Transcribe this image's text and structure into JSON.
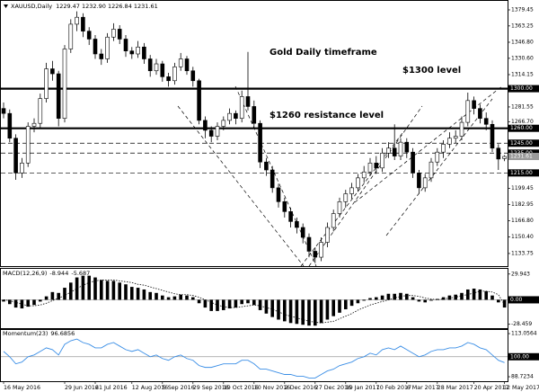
{
  "chart_data": [
    {
      "type": "candlestick",
      "title": "XAUUSD,Daily",
      "header_values": "1229.47 1232.90 1226.84 1231.61",
      "annotations": [
        "Gold Daily timeframe",
        "$1300 level",
        "$1260 resistance level"
      ],
      "categories": [
        "16 May 2016",
        null,
        null,
        null,
        null,
        null,
        null,
        null,
        null,
        null,
        "29 Jun 2016",
        null,
        null,
        null,
        null,
        "21 Jul 2016",
        null,
        null,
        null,
        null,
        null,
        "12 Aug 2016",
        null,
        null,
        null,
        null,
        "5 Sep 2016",
        null,
        null,
        null,
        null,
        "29 Sep 2016",
        null,
        null,
        null,
        null,
        "19 Oct 2016",
        null,
        null,
        null,
        null,
        "10 Nov 2016",
        null,
        null,
        null,
        null,
        "2 Dec 2016",
        null,
        null,
        null,
        null,
        "27 Dec 2016",
        null,
        null,
        null,
        null,
        "19 Jan 2017",
        null,
        null,
        null,
        null,
        "10 Feb 2017",
        null,
        null,
        null,
        null,
        "6 Mar 2017",
        null,
        null,
        null,
        null,
        "28 Mar 2017",
        null,
        null,
        null,
        null,
        null,
        "20 Apr 2017",
        null,
        null,
        null,
        null,
        "12 May 2017"
      ],
      "open": [
        1280,
        1275,
        1250,
        1215,
        1225,
        1262,
        1265,
        1290,
        1320,
        1315,
        1270,
        1340,
        1365,
        1372,
        1358,
        1350,
        1335,
        1330,
        1352,
        1360,
        1350,
        1338,
        1335,
        1342,
        1330,
        1318,
        1325,
        1312,
        1308,
        1322,
        1330,
        1318,
        1308,
        1268,
        1258,
        1252,
        1262,
        1268,
        1275,
        1270,
        1292,
        1282,
        1265,
        1226,
        1218,
        1200,
        1186,
        1176,
        1166,
        1160,
        1150,
        1136,
        1130,
        1145,
        1160,
        1174,
        1186,
        1194,
        1200,
        1210,
        1216,
        1225,
        1220,
        1235,
        1240,
        1232,
        1246,
        1236,
        1215,
        1200,
        1210,
        1226,
        1236,
        1244,
        1250,
        1252,
        1266,
        1288,
        1280,
        1270,
        1264,
        1240,
        1229.47
      ],
      "high": [
        1286,
        1279,
        1254,
        1230,
        1266,
        1270,
        1295,
        1326,
        1328,
        1318,
        1344,
        1370,
        1378,
        1376,
        1362,
        1354,
        1340,
        1356,
        1366,
        1364,
        1354,
        1342,
        1348,
        1346,
        1334,
        1330,
        1328,
        1316,
        1326,
        1336,
        1333,
        1322,
        1310,
        1272,
        1262,
        1266,
        1272,
        1280,
        1278,
        1298,
        1337,
        1288,
        1268,
        1230,
        1222,
        1204,
        1190,
        1180,
        1170,
        1164,
        1154,
        1140,
        1150,
        1165,
        1178,
        1190,
        1198,
        1205,
        1214,
        1222,
        1230,
        1232,
        1240,
        1246,
        1264,
        1250,
        1250,
        1240,
        1218,
        1214,
        1230,
        1240,
        1248,
        1256,
        1258,
        1272,
        1296,
        1292,
        1284,
        1276,
        1268,
        1244,
        1232.9
      ],
      "low": [
        1270,
        1246,
        1208,
        1210,
        1221,
        1256,
        1260,
        1286,
        1308,
        1262,
        1266,
        1336,
        1358,
        1352,
        1344,
        1330,
        1324,
        1326,
        1348,
        1345,
        1332,
        1330,
        1331,
        1325,
        1312,
        1314,
        1307,
        1302,
        1304,
        1318,
        1314,
        1302,
        1264,
        1250,
        1246,
        1248,
        1258,
        1264,
        1264,
        1266,
        1278,
        1260,
        1220,
        1212,
        1195,
        1180,
        1170,
        1160,
        1154,
        1144,
        1130,
        1124,
        1126,
        1140,
        1156,
        1170,
        1180,
        1189,
        1196,
        1205,
        1212,
        1214,
        1216,
        1230,
        1228,
        1228,
        1230,
        1210,
        1194,
        1196,
        1206,
        1222,
        1230,
        1240,
        1245,
        1248,
        1262,
        1274,
        1265,
        1258,
        1236,
        1218,
        1226.84
      ],
      "close": [
        1275,
        1250,
        1215,
        1225,
        1262,
        1265,
        1290,
        1320,
        1315,
        1270,
        1340,
        1365,
        1372,
        1358,
        1350,
        1335,
        1330,
        1352,
        1360,
        1350,
        1338,
        1335,
        1342,
        1330,
        1318,
        1325,
        1312,
        1308,
        1322,
        1330,
        1318,
        1308,
        1268,
        1258,
        1252,
        1262,
        1268,
        1275,
        1270,
        1292,
        1282,
        1265,
        1226,
        1218,
        1200,
        1186,
        1176,
        1166,
        1160,
        1150,
        1136,
        1130,
        1145,
        1160,
        1174,
        1186,
        1194,
        1200,
        1210,
        1216,
        1225,
        1220,
        1235,
        1240,
        1232,
        1246,
        1236,
        1215,
        1200,
        1210,
        1226,
        1236,
        1244,
        1250,
        1252,
        1266,
        1288,
        1280,
        1270,
        1264,
        1240,
        1229,
        1231.61
      ],
      "color": "#000000",
      "ylim": [
        1121,
        1388.5
      ],
      "yticks": [
        1379.45,
        1363.25,
        {
          "value": 1346.8,
          "label": "1346.80"
        },
        {
          "value": 1330.6,
          "label": "1330.60"
        },
        1314.15,
        1281.55,
        {
          "value": 1266.7,
          "label": "1266.70"
        },
        1199.45,
        1182.95,
        {
          "value": 1166.8,
          "label": "1166.80"
        },
        {
          "value": 1150.4,
          "label": "1150.40"
        },
        1133.75
      ],
      "levels": [
        {
          "value": 1300,
          "label": "1300.00",
          "style": "thick"
        },
        {
          "value": 1260,
          "label": "1260.00",
          "style": "thick"
        },
        {
          "value": 1245,
          "label": "1245.00",
          "style": "dashed"
        },
        {
          "value": 1235,
          "label": "1235.00",
          "style": "dashed"
        },
        {
          "value": 1231.61,
          "label": "1231.61",
          "style": "current"
        },
        {
          "value": 1215,
          "label": "1215.00",
          "style": "dashed"
        }
      ]
    },
    {
      "type": "macd",
      "title": "MACD(12,26,9)",
      "series": [
        {
          "color": "#000000",
          "style": "histogram",
          "values": [
            -2,
            -5,
            -9,
            -10,
            -8,
            -6,
            -2,
            4,
            9,
            8,
            14,
            20,
            26,
            28,
            28,
            26,
            23,
            22,
            22,
            20,
            18,
            15,
            14,
            12,
            9,
            8,
            5,
            3,
            4,
            6,
            5,
            3,
            -4,
            -9,
            -13,
            -13,
            -12,
            -10,
            -9,
            -5,
            -4,
            -6,
            -12,
            -16,
            -20,
            -23,
            -25,
            -27,
            -28,
            -29,
            -30,
            -30,
            -27,
            -23,
            -19,
            -15,
            -11,
            -7,
            -4,
            -1,
            2,
            3,
            5,
            7,
            7,
            8,
            7,
            3,
            -2,
            -3,
            -1,
            1,
            3,
            5,
            6,
            8,
            12,
            13,
            12,
            10,
            5,
            -3,
            -8.944
          ]
        },
        {
          "color": "#000000",
          "style": "dotted",
          "values": [
            0,
            -1,
            -3,
            -5,
            -7,
            -7,
            -6,
            -4,
            -1,
            2,
            5,
            9,
            13,
            17,
            20,
            22,
            23,
            23,
            23,
            22,
            21,
            20,
            18,
            17,
            15,
            13,
            11,
            9,
            7,
            6,
            6,
            5,
            3,
            0,
            -3,
            -6,
            -8,
            -9,
            -9,
            -8,
            -7,
            -6,
            -7,
            -9,
            -11,
            -14,
            -17,
            -19,
            -21,
            -23,
            -25,
            -26,
            -27,
            -26,
            -25,
            -22,
            -19,
            -16,
            -12,
            -9,
            -6,
            -4,
            -2,
            0,
            2,
            4,
            5,
            5,
            4,
            2,
            1,
            0,
            1,
            2,
            3,
            5,
            6,
            8,
            10,
            10,
            9,
            6,
            -5.687
          ]
        }
      ],
      "ylim": [
        -34,
        36
      ],
      "yticks": [
        29.943,
        {
          "value": 0,
          "label": "0.00",
          "highlight": true
        },
        -28.459
      ]
    },
    {
      "type": "line",
      "title": "Momentum(23)",
      "color": "#3a8ee6",
      "values": [
        103,
        100,
        96,
        97,
        100,
        101,
        103,
        105,
        104,
        101,
        107,
        109,
        110,
        108,
        107,
        105,
        105,
        107,
        108,
        106,
        104,
        103,
        104,
        102,
        100,
        101,
        99,
        98,
        100,
        101,
        99,
        98,
        95,
        94,
        94,
        95,
        96,
        96,
        96,
        98,
        98,
        96,
        93,
        93,
        92,
        91,
        90,
        90,
        89,
        89,
        88,
        88,
        90,
        92,
        93,
        95,
        96,
        97,
        99,
        100,
        102,
        101,
        104,
        105,
        104,
        106,
        104,
        102,
        100,
        101,
        103,
        104,
        104,
        105,
        105,
        106,
        108,
        107,
        105,
        104,
        101,
        98,
        96.6856
      ],
      "ylim": [
        86.2,
        115.1
      ],
      "yticks": [
        113.0564,
        {
          "value": 100,
          "label": "100.00",
          "highlight": true
        },
        88.7234
      ]
    }
  ]
}
